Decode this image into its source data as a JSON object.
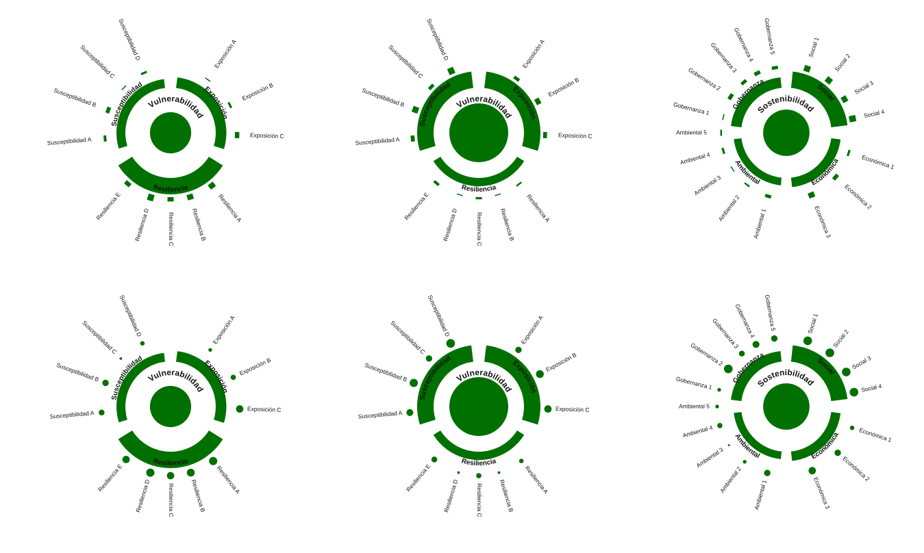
{
  "colors": {
    "accent": "#007000"
  },
  "chart_data": [
    {
      "type": "radial-bar",
      "center_value": 0.49,
      "main": {
        "name": "Vulnerabilidad",
        "start": 328,
        "end": 417
      },
      "dims": [
        {
          "name": "Exposición",
          "start": 7,
          "end": 107,
          "value": 0.5,
          "items": [
            {
              "name": "Exposición A",
              "angle": 35,
              "value": 0.1
            },
            {
              "name": "Exposición B",
              "angle": 65,
              "value": 0.2
            },
            {
              "name": "Exposición C",
              "angle": 92,
              "value": 0.4
            }
          ]
        },
        {
          "name": "Resiliencia",
          "start": 122,
          "end": 238,
          "value": 1.0,
          "items": [
            {
              "name": "Resiliencia A",
              "angle": 142,
              "value": 0.5
            },
            {
              "name": "Resiliencia B",
              "angle": 163,
              "value": 0.5
            },
            {
              "name": "Resiliencia C",
              "angle": 180,
              "value": 0.4
            },
            {
              "name": "Resiliencia D",
              "angle": 197,
              "value": 0.6
            },
            {
              "name": "Resiliencia E",
              "angle": 220,
              "value": 0.4
            }
          ]
        },
        {
          "name": "Susceptibilidad",
          "start": 253,
          "end": 353,
          "value": 0.35,
          "items": [
            {
              "name": "Susceptibilidad A",
              "angle": 265,
              "value": 0.25
            },
            {
              "name": "Susceptibilidad B",
              "angle": 290,
              "value": 0.35
            },
            {
              "name": "Susceptibilidad C",
              "angle": 314,
              "value": 0.05
            },
            {
              "name": "Susceptibilidad D",
              "angle": 336,
              "value": 0.2
            }
          ]
        }
      ]
    },
    {
      "type": "radial-bar",
      "center_value": 1.0,
      "main": {
        "name": "Vulnerabilidad",
        "start": 328,
        "end": 417
      },
      "dims": [
        {
          "name": "Exposición",
          "start": 7,
          "end": 107,
          "value": 1.0,
          "items": [
            {
              "name": "Exposición A",
              "angle": 35,
              "value": 0.3
            },
            {
              "name": "Exposición B",
              "angle": 62,
              "value": 0.45
            },
            {
              "name": "Exposición C",
              "angle": 92,
              "value": 0.35
            }
          ]
        },
        {
          "name": "Resiliencia",
          "start": 122,
          "end": 238,
          "value": 0.3,
          "items": [
            {
              "name": "Resiliencia A",
              "angle": 142,
              "value": 0.15
            },
            {
              "name": "Resiliencia B",
              "angle": 163,
              "value": 0.05
            },
            {
              "name": "Resiliencia C",
              "angle": 180,
              "value": 0.2
            },
            {
              "name": "Resiliencia D",
              "angle": 197,
              "value": 0.05
            },
            {
              "name": "Resiliencia E",
              "angle": 220,
              "value": 0.25
            }
          ]
        },
        {
          "name": "Susceptibilidad",
          "start": 253,
          "end": 353,
          "value": 1.0,
          "items": [
            {
              "name": "Susceptibilidad A",
              "angle": 265,
              "value": 0.35
            },
            {
              "name": "Susceptibilidad B",
              "angle": 290,
              "value": 0.55
            },
            {
              "name": "Susceptibilidad C",
              "angle": 314,
              "value": 0.3
            },
            {
              "name": "Susceptibilidad D",
              "angle": 336,
              "value": 0.6
            }
          ]
        }
      ]
    },
    {
      "type": "radial-bar",
      "center_value": 0.62,
      "main": {
        "name": "Sostenibilidad",
        "start": 337,
        "end": 380
      },
      "dims": [
        {
          "name": "Social",
          "start": 6,
          "end": 83,
          "value": 1.0,
          "items": [
            {
              "name": "Social 1",
              "angle": 18,
              "value": 0.55
            },
            {
              "name": "Social 2",
              "angle": 39,
              "value": 0.55
            },
            {
              "name": "Social 3",
              "angle": 60,
              "value": 0.5
            },
            {
              "name": "Social 4",
              "angle": 78,
              "value": 0.6
            }
          ]
        },
        {
          "name": "Económica",
          "start": 97,
          "end": 174,
          "value": 0.4,
          "items": [
            {
              "name": "Económica 1",
              "angle": 108,
              "value": 0.2
            },
            {
              "name": "Económica 2",
              "angle": 132,
              "value": 0.35
            },
            {
              "name": "Económica 3",
              "angle": 158,
              "value": 0.5
            }
          ]
        },
        {
          "name": "Ambiental",
          "start": 186,
          "end": 263,
          "value": 0.25,
          "items": [
            {
              "name": "Ambiental 1",
              "angle": 196,
              "value": 0.3
            },
            {
              "name": "Ambiental 2",
              "angle": 217,
              "value": 0.15
            },
            {
              "name": "Ambiental 3",
              "angle": 236,
              "value": 0.05
            },
            {
              "name": "Ambiental 4",
              "angle": 254,
              "value": 0.2
            },
            {
              "name": "Ambiental 5",
              "angle": 270,
              "value": 0.15
            }
          ]
        },
        {
          "name": "Gobernanza",
          "start": 277,
          "end": 354,
          "value": 0.5,
          "items": [
            {
              "name": "Gobernanza 1",
              "angle": 284,
              "value": 0.1
            },
            {
              "name": "Gobernanza 2",
              "angle": 303,
              "value": 0.35
            },
            {
              "name": "Gobernanza 3",
              "angle": 320,
              "value": 0.3
            },
            {
              "name": "Gobernanza 4",
              "angle": 334,
              "value": 0.35
            },
            {
              "name": "Gobernanza 5",
              "angle": 350,
              "value": 0.3
            }
          ]
        }
      ]
    },
    {
      "type": "radial-dot",
      "center_value": 0.49,
      "main": {
        "name": "Vulnerabilidad",
        "start": 328,
        "end": 417
      },
      "dims": [
        {
          "name": "Exposición",
          "start": 7,
          "end": 107,
          "value": 0.5,
          "items": [
            {
              "name": "Exposición A",
              "angle": 35,
              "value": 0.1
            },
            {
              "name": "Exposición B",
              "angle": 65,
              "value": 0.2
            },
            {
              "name": "Exposición C",
              "angle": 92,
              "value": 0.4
            }
          ]
        },
        {
          "name": "Resiliencia",
          "start": 122,
          "end": 238,
          "value": 1.0,
          "items": [
            {
              "name": "Resiliencia A",
              "angle": 142,
              "value": 0.5
            },
            {
              "name": "Resiliencia B",
              "angle": 163,
              "value": 0.45
            },
            {
              "name": "Resiliencia C",
              "angle": 180,
              "value": 0.4
            },
            {
              "name": "Resiliencia D",
              "angle": 197,
              "value": 0.5
            },
            {
              "name": "Resiliencia E",
              "angle": 220,
              "value": 0.4
            }
          ]
        },
        {
          "name": "Susceptibilidad",
          "start": 253,
          "end": 353,
          "value": 0.35,
          "items": [
            {
              "name": "Susceptibilidad A",
              "angle": 265,
              "value": 0.25
            },
            {
              "name": "Susceptibilidad B",
              "angle": 290,
              "value": 0.3
            },
            {
              "name": "Susceptibilidad C",
              "angle": 314,
              "value": 0.05
            },
            {
              "name": "Susceptibilidad D",
              "angle": 336,
              "value": 0.15
            }
          ]
        }
      ]
    },
    {
      "type": "radial-dot",
      "center_value": 1.0,
      "main": {
        "name": "Vulnerabilidad",
        "start": 328,
        "end": 417
      },
      "dims": [
        {
          "name": "Exposición",
          "start": 7,
          "end": 107,
          "value": 1.0,
          "items": [
            {
              "name": "Exposición A",
              "angle": 35,
              "value": 0.3
            },
            {
              "name": "Exposición B",
              "angle": 62,
              "value": 0.45
            },
            {
              "name": "Exposición C",
              "angle": 92,
              "value": 0.4
            }
          ]
        },
        {
          "name": "Resiliencia",
          "start": 122,
          "end": 238,
          "value": 0.3,
          "items": [
            {
              "name": "Resiliencia A",
              "angle": 142,
              "value": 0.15
            },
            {
              "name": "Resiliencia B",
              "angle": 163,
              "value": 0.05
            },
            {
              "name": "Resiliencia C",
              "angle": 180,
              "value": 0.2
            },
            {
              "name": "Resiliencia D",
              "angle": 197,
              "value": 0.05
            },
            {
              "name": "Resiliencia E",
              "angle": 220,
              "value": 0.25
            }
          ]
        },
        {
          "name": "Susceptibilidad",
          "start": 253,
          "end": 353,
          "value": 1.0,
          "items": [
            {
              "name": "Susceptibilidad A",
              "angle": 265,
              "value": 0.35
            },
            {
              "name": "Susceptibilidad B",
              "angle": 290,
              "value": 0.5
            },
            {
              "name": "Susceptibilidad C",
              "angle": 314,
              "value": 0.3
            },
            {
              "name": "Susceptibilidad D",
              "angle": 336,
              "value": 0.55
            }
          ]
        }
      ]
    },
    {
      "type": "radial-dot",
      "center_value": 0.62,
      "main": {
        "name": "Sostenibilidad",
        "start": 337,
        "end": 380
      },
      "dims": [
        {
          "name": "Social",
          "start": 6,
          "end": 83,
          "value": 1.0,
          "items": [
            {
              "name": "Social 1",
              "angle": 18,
              "value": 0.55
            },
            {
              "name": "Social 2",
              "angle": 39,
              "value": 0.55
            },
            {
              "name": "Social 3",
              "angle": 60,
              "value": 0.55
            },
            {
              "name": "Social 4",
              "angle": 78,
              "value": 0.55
            }
          ]
        },
        {
          "name": "Económica",
          "start": 97,
          "end": 174,
          "value": 0.4,
          "items": [
            {
              "name": "Económica 1",
              "angle": 108,
              "value": 0.15
            },
            {
              "name": "Económica 2",
              "angle": 132,
              "value": 0.3
            },
            {
              "name": "Económica 3",
              "angle": 158,
              "value": 0.4
            }
          ]
        },
        {
          "name": "Ambiental",
          "start": 186,
          "end": 263,
          "value": 0.25,
          "items": [
            {
              "name": "Ambiental 1",
              "angle": 196,
              "value": 0.3
            },
            {
              "name": "Ambiental 2",
              "angle": 217,
              "value": 0.1
            },
            {
              "name": "Ambiental 3",
              "angle": 236,
              "value": 0.03
            },
            {
              "name": "Ambiental 4",
              "angle": 254,
              "value": 0.2
            },
            {
              "name": "Ambiental 5",
              "angle": 270,
              "value": 0.1
            }
          ]
        },
        {
          "name": "Gobernanza",
          "start": 277,
          "end": 354,
          "value": 0.5,
          "items": [
            {
              "name": "Gobernanza 1",
              "angle": 284,
              "value": 0.1
            },
            {
              "name": "Gobernanza 2",
              "angle": 303,
              "value": 0.55
            },
            {
              "name": "Gobernanza 3",
              "angle": 320,
              "value": 0.25
            },
            {
              "name": "Gobernanza 4",
              "angle": 334,
              "value": 0.35
            },
            {
              "name": "Gobernanza 5",
              "angle": 350,
              "value": 0.3
            }
          ]
        }
      ]
    }
  ]
}
